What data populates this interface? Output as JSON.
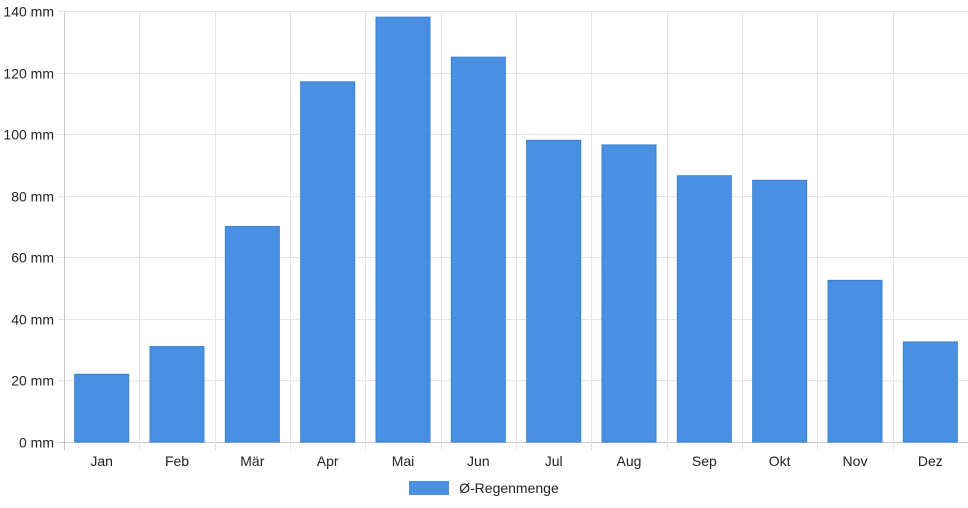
{
  "chart_data": {
    "type": "bar",
    "categories": [
      "Jan",
      "Feb",
      "Mär",
      "Apr",
      "Mai",
      "Jun",
      "Jul",
      "Aug",
      "Sep",
      "Okt",
      "Nov",
      "Dez"
    ],
    "series": [
      {
        "name": "Ø-Regenmenge",
        "values": [
          22,
          31,
          70,
          117,
          138,
          125,
          98,
          96.5,
          86.5,
          85,
          52.5,
          32.5
        ],
        "color": "#4a90e2"
      }
    ],
    "y_ticks": [
      "0 mm",
      "20 mm",
      "40 mm",
      "60 mm",
      "80 mm",
      "100 mm",
      "120 mm",
      "140 mm"
    ],
    "ylim": [
      0,
      140
    ],
    "grid": true,
    "legend_position": "bottom"
  }
}
